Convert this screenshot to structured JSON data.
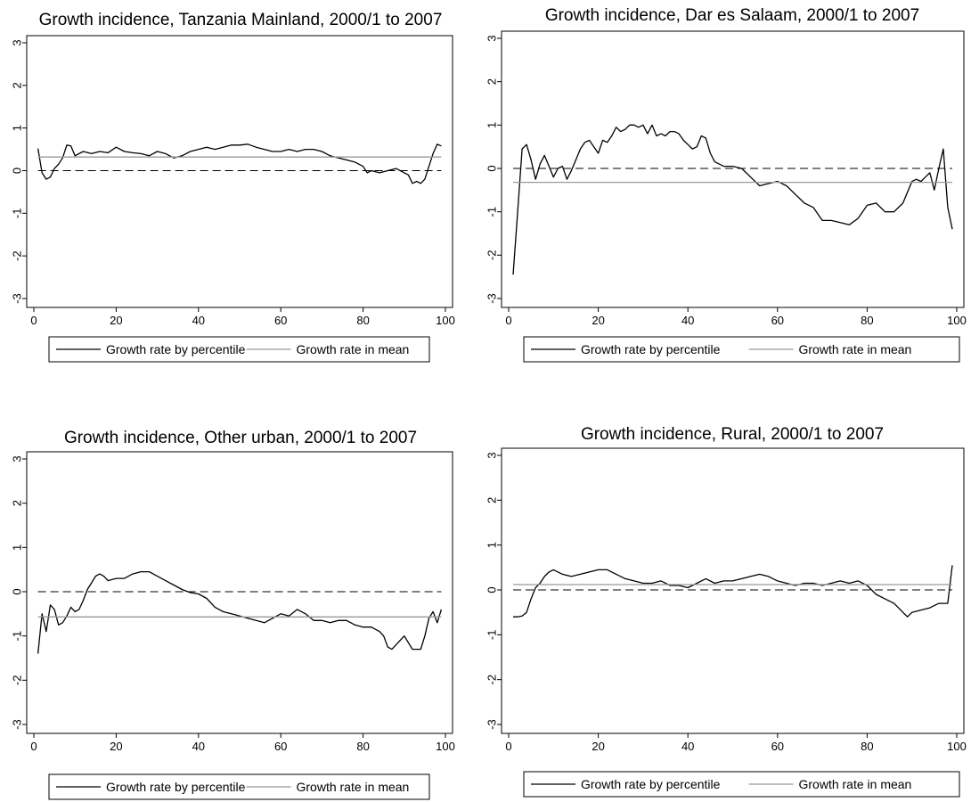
{
  "chart_data": [
    {
      "type": "line",
      "title": "Growth incidence, Tanzania Mainland, 2000/1 to 2007",
      "xlabel": "",
      "ylabel": "",
      "xlim": [
        0,
        100
      ],
      "ylim": [
        -3,
        3
      ],
      "x_ticks": [
        0,
        20,
        40,
        60,
        80,
        100
      ],
      "y_ticks": [
        -3,
        -2,
        -1,
        0,
        1,
        2,
        3
      ],
      "grid": false,
      "reference_line": 0,
      "legend_position": "bottom",
      "series": [
        {
          "name": "Growth rate by percentile",
          "style": "solid",
          "color": "#000000",
          "x": [
            1,
            2,
            3,
            4,
            5,
            6,
            7,
            8,
            9,
            10,
            12,
            14,
            16,
            18,
            20,
            22,
            24,
            26,
            28,
            30,
            32,
            34,
            36,
            38,
            40,
            42,
            44,
            46,
            48,
            50,
            52,
            54,
            56,
            58,
            60,
            62,
            64,
            66,
            68,
            70,
            72,
            74,
            76,
            78,
            80,
            81,
            82,
            84,
            86,
            88,
            90,
            91,
            92,
            93,
            94,
            95,
            96,
            97,
            98,
            99
          ],
          "y": [
            0.52,
            -0.05,
            -0.2,
            -0.15,
            0.05,
            0.15,
            0.3,
            0.6,
            0.58,
            0.35,
            0.45,
            0.4,
            0.45,
            0.42,
            0.55,
            0.45,
            0.42,
            0.4,
            0.35,
            0.45,
            0.4,
            0.3,
            0.35,
            0.45,
            0.5,
            0.55,
            0.5,
            0.55,
            0.6,
            0.6,
            0.62,
            0.55,
            0.5,
            0.45,
            0.45,
            0.5,
            0.45,
            0.5,
            0.5,
            0.45,
            0.35,
            0.3,
            0.25,
            0.2,
            0.1,
            -0.05,
            0.0,
            -0.05,
            0.0,
            0.05,
            -0.05,
            -0.1,
            -0.3,
            -0.25,
            -0.3,
            -0.2,
            0.1,
            0.4,
            0.62,
            0.58
          ]
        },
        {
          "name": "Growth rate in mean",
          "style": "solid",
          "color": "#999999",
          "x": [
            1,
            99
          ],
          "y": [
            0.32,
            0.32
          ]
        }
      ]
    },
    {
      "type": "line",
      "title": "Growth incidence, Dar es Salaam, 2000/1 to 2007",
      "xlabel": "",
      "ylabel": "",
      "xlim": [
        0,
        100
      ],
      "ylim": [
        -3,
        3
      ],
      "x_ticks": [
        0,
        20,
        40,
        60,
        80,
        100
      ],
      "y_ticks": [
        -3,
        -2,
        -1,
        0,
        1,
        2,
        3
      ],
      "grid": false,
      "reference_line": 0,
      "legend_position": "bottom",
      "series": [
        {
          "name": "Growth rate by percentile",
          "style": "solid",
          "color": "#000000",
          "x": [
            1,
            2,
            3,
            4,
            5,
            6,
            7,
            8,
            9,
            10,
            11,
            12,
            13,
            14,
            15,
            16,
            17,
            18,
            19,
            20,
            21,
            22,
            23,
            24,
            25,
            26,
            27,
            28,
            29,
            30,
            31,
            32,
            33,
            34,
            35,
            36,
            37,
            38,
            39,
            40,
            41,
            42,
            43,
            44,
            45,
            46,
            47,
            48,
            49,
            50,
            52,
            54,
            56,
            58,
            60,
            62,
            64,
            66,
            68,
            70,
            72,
            74,
            76,
            78,
            80,
            82,
            84,
            86,
            88,
            90,
            91,
            92,
            93,
            94,
            95,
            96,
            97,
            98,
            99
          ],
          "y": [
            -2.45,
            -1.0,
            0.45,
            0.55,
            0.2,
            -0.25,
            0.1,
            0.3,
            0.05,
            -0.2,
            0.0,
            0.05,
            -0.25,
            -0.05,
            0.2,
            0.45,
            0.6,
            0.65,
            0.5,
            0.35,
            0.65,
            0.6,
            0.75,
            0.95,
            0.85,
            0.9,
            1.0,
            1.0,
            0.95,
            1.0,
            0.8,
            1.0,
            0.75,
            0.8,
            0.75,
            0.85,
            0.85,
            0.8,
            0.65,
            0.55,
            0.45,
            0.5,
            0.75,
            0.7,
            0.35,
            0.15,
            0.1,
            0.05,
            0.05,
            0.05,
            0.0,
            -0.2,
            -0.4,
            -0.35,
            -0.3,
            -0.4,
            -0.6,
            -0.8,
            -0.9,
            -1.2,
            -1.2,
            -1.25,
            -1.3,
            -1.15,
            -0.85,
            -0.8,
            -1.0,
            -1.0,
            -0.8,
            -0.3,
            -0.25,
            -0.3,
            -0.2,
            -0.1,
            -0.5,
            0.0,
            0.45,
            -0.9,
            -1.4
          ]
        },
        {
          "name": "Growth rate in mean",
          "style": "solid",
          "color": "#999999",
          "x": [
            1,
            99
          ],
          "y": [
            -0.32,
            -0.32
          ]
        }
      ]
    },
    {
      "type": "line",
      "title": "Growth incidence, Other urban, 2000/1 to 2007",
      "xlabel": "",
      "ylabel": "",
      "xlim": [
        0,
        100
      ],
      "ylim": [
        -3,
        3
      ],
      "x_ticks": [
        0,
        20,
        40,
        60,
        80,
        100
      ],
      "y_ticks": [
        -3,
        -2,
        -1,
        0,
        1,
        2,
        3
      ],
      "grid": false,
      "reference_line": 0,
      "legend_position": "bottom",
      "series": [
        {
          "name": "Growth rate by percentile",
          "style": "solid",
          "color": "#000000",
          "x": [
            1,
            2,
            3,
            4,
            5,
            6,
            7,
            8,
            9,
            10,
            11,
            12,
            13,
            14,
            15,
            16,
            17,
            18,
            20,
            22,
            24,
            26,
            28,
            30,
            32,
            34,
            36,
            38,
            40,
            42,
            44,
            46,
            48,
            50,
            52,
            54,
            56,
            58,
            60,
            62,
            64,
            66,
            68,
            70,
            72,
            74,
            76,
            78,
            80,
            82,
            84,
            85,
            86,
            87,
            88,
            90,
            92,
            94,
            95,
            96,
            97,
            98,
            99
          ],
          "y": [
            -1.4,
            -0.5,
            -0.9,
            -0.3,
            -0.4,
            -0.75,
            -0.7,
            -0.55,
            -0.35,
            -0.45,
            -0.4,
            -0.2,
            0.05,
            0.2,
            0.35,
            0.4,
            0.35,
            0.25,
            0.3,
            0.3,
            0.4,
            0.45,
            0.45,
            0.35,
            0.25,
            0.15,
            0.05,
            -0.02,
            -0.05,
            -0.15,
            -0.35,
            -0.45,
            -0.5,
            -0.55,
            -0.6,
            -0.65,
            -0.7,
            -0.6,
            -0.5,
            -0.55,
            -0.4,
            -0.5,
            -0.65,
            -0.65,
            -0.7,
            -0.65,
            -0.65,
            -0.75,
            -0.8,
            -0.8,
            -0.9,
            -1.0,
            -1.25,
            -1.3,
            -1.2,
            -1.0,
            -1.3,
            -1.3,
            -1.0,
            -0.6,
            -0.45,
            -0.7,
            -0.4
          ]
        },
        {
          "name": "Growth rate in mean",
          "style": "solid",
          "color": "#999999",
          "x": [
            1,
            99
          ],
          "y": [
            -0.57,
            -0.57
          ]
        }
      ]
    },
    {
      "type": "line",
      "title": "Growth incidence, Rural, 2000/1 to 2007",
      "xlabel": "",
      "ylabel": "",
      "xlim": [
        0,
        100
      ],
      "ylim": [
        -3,
        3
      ],
      "x_ticks": [
        0,
        20,
        40,
        60,
        80,
        100
      ],
      "y_ticks": [
        -3,
        -2,
        -1,
        0,
        1,
        2,
        3
      ],
      "grid": false,
      "reference_line": 0,
      "legend_position": "bottom",
      "series": [
        {
          "name": "Growth rate by percentile",
          "style": "solid",
          "color": "#000000",
          "x": [
            1,
            2,
            3,
            4,
            5,
            6,
            7,
            8,
            9,
            10,
            12,
            14,
            16,
            18,
            20,
            22,
            24,
            26,
            28,
            30,
            32,
            34,
            36,
            38,
            40,
            42,
            44,
            46,
            48,
            50,
            52,
            54,
            56,
            58,
            60,
            62,
            64,
            66,
            68,
            70,
            72,
            74,
            76,
            78,
            80,
            82,
            84,
            86,
            88,
            89,
            90,
            92,
            94,
            96,
            98,
            99
          ],
          "y": [
            -0.6,
            -0.6,
            -0.58,
            -0.5,
            -0.2,
            0.05,
            0.15,
            0.3,
            0.4,
            0.45,
            0.35,
            0.3,
            0.35,
            0.4,
            0.45,
            0.45,
            0.35,
            0.25,
            0.2,
            0.15,
            0.15,
            0.2,
            0.1,
            0.1,
            0.05,
            0.15,
            0.25,
            0.15,
            0.2,
            0.2,
            0.25,
            0.3,
            0.35,
            0.3,
            0.2,
            0.15,
            0.1,
            0.15,
            0.15,
            0.1,
            0.15,
            0.2,
            0.15,
            0.2,
            0.1,
            -0.1,
            -0.2,
            -0.3,
            -0.5,
            -0.6,
            -0.5,
            -0.45,
            -0.4,
            -0.3,
            -0.3,
            0.55
          ]
        },
        {
          "name": "Growth rate in mean",
          "style": "solid",
          "color": "#999999",
          "x": [
            1,
            99
          ],
          "y": [
            0.12,
            0.12
          ]
        }
      ]
    }
  ]
}
